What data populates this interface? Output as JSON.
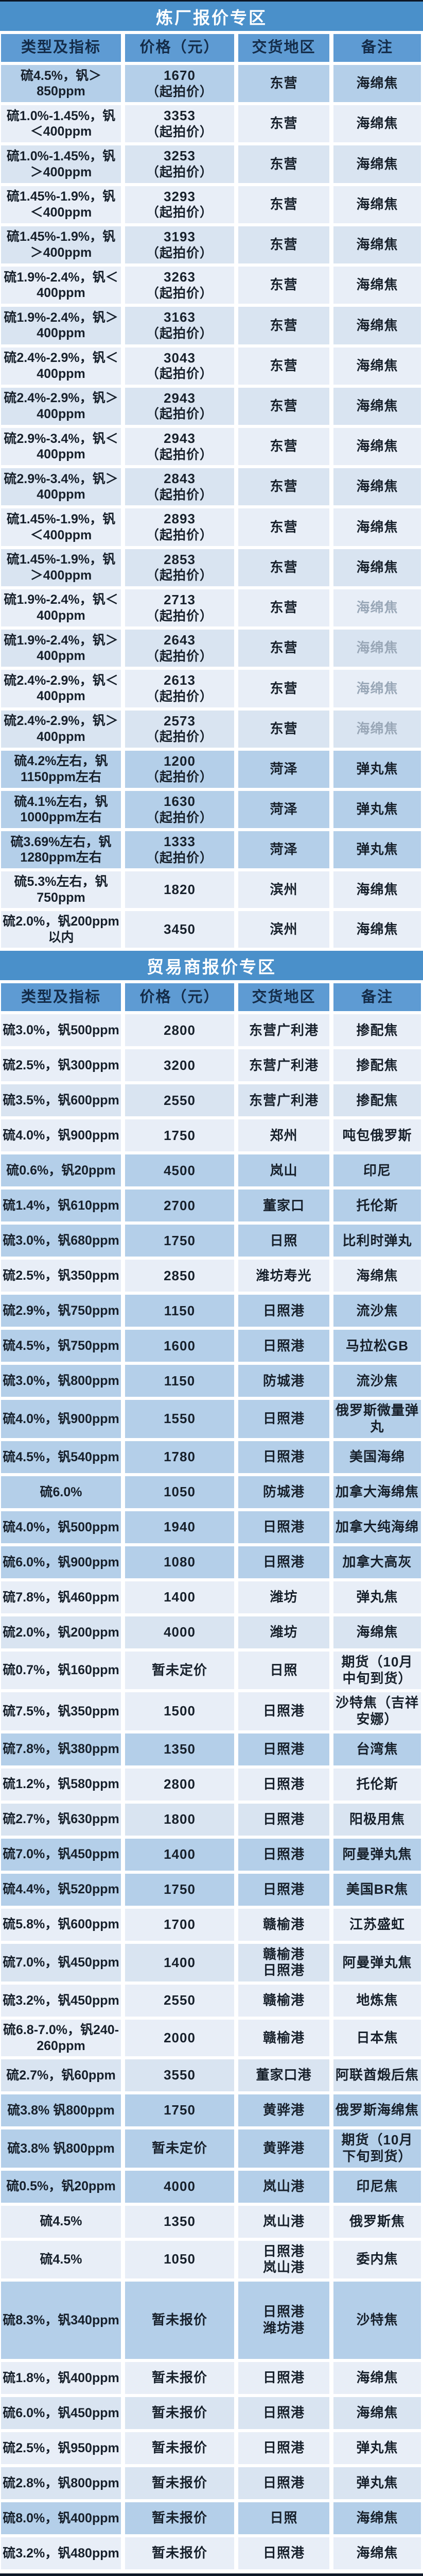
{
  "colors": {
    "section_band": "#4a90ca",
    "header_cell": "#5e9bd3",
    "header_text": "#142c49",
    "band_text": "#ffffff",
    "row_a": "#e8eef7",
    "row_b": "#d9e4f1",
    "row_m": "#b4cfe9",
    "cell_text": "#17202b",
    "muted_text": "#99a7b7",
    "frame": "#0d1726"
  },
  "columns": [
    "类型及指标",
    "价格（元）",
    "交货地区",
    "备注"
  ],
  "sections": [
    {
      "title": "炼厂报价专区",
      "rows": [
        {
          "spec": "硫4.5%，钒＞850ppm",
          "price": "1670",
          "price_note": "（起拍价）",
          "region": "东营",
          "note": "海绵焦",
          "shade": "m"
        },
        {
          "spec": "硫1.0%-1.45%，钒＜400ppm",
          "price": "3353",
          "price_note": "（起拍价）",
          "region": "东营",
          "note": "海绵焦",
          "shade": "a"
        },
        {
          "spec": "硫1.0%-1.45%，钒＞400ppm",
          "price": "3253",
          "price_note": "（起拍价）",
          "region": "东营",
          "note": "海绵焦",
          "shade": "b"
        },
        {
          "spec": "硫1.45%-1.9%，钒＜400ppm",
          "price": "3293",
          "price_note": "（起拍价）",
          "region": "东营",
          "note": "海绵焦",
          "shade": "a"
        },
        {
          "spec": "硫1.45%-1.9%，钒＞400ppm",
          "price": "3193",
          "price_note": "（起拍价）",
          "region": "东营",
          "note": "海绵焦",
          "shade": "b"
        },
        {
          "spec": "硫1.9%-2.4%，钒＜400ppm",
          "price": "3263",
          "price_note": "（起拍价）",
          "region": "东营",
          "note": "海绵焦",
          "shade": "a"
        },
        {
          "spec": "硫1.9%-2.4%，钒＞400ppm",
          "price": "3163",
          "price_note": "（起拍价）",
          "region": "东营",
          "note": "海绵焦",
          "shade": "b"
        },
        {
          "spec": "硫2.4%-2.9%，钒＜400ppm",
          "price": "3043",
          "price_note": "（起拍价）",
          "region": "东营",
          "note": "海绵焦",
          "shade": "a"
        },
        {
          "spec": "硫2.4%-2.9%，钒＞400ppm",
          "price": "2943",
          "price_note": "（起拍价）",
          "region": "东营",
          "note": "海绵焦",
          "shade": "b"
        },
        {
          "spec": "硫2.9%-3.4%，钒＜400ppm",
          "price": "2943",
          "price_note": "（起拍价）",
          "region": "东营",
          "note": "海绵焦",
          "shade": "a"
        },
        {
          "spec": "硫2.9%-3.4%，钒＞400ppm",
          "price": "2843",
          "price_note": "（起拍价）",
          "region": "东营",
          "note": "海绵焦",
          "shade": "b"
        },
        {
          "spec": "硫1.45%-1.9%，钒＜400ppm",
          "price": "2893",
          "price_note": "（起拍价）",
          "region": "东营",
          "note": "海绵焦",
          "shade": "a"
        },
        {
          "spec": "硫1.45%-1.9%，钒＞400ppm",
          "price": "2853",
          "price_note": "（起拍价）",
          "region": "东营",
          "note": "海绵焦",
          "shade": "b"
        },
        {
          "spec": "硫1.9%-2.4%，钒＜400ppm",
          "price": "2713",
          "price_note": "（起拍价）",
          "region": "东营",
          "note": "海绵焦",
          "shade": "a",
          "muted": true
        },
        {
          "spec": "硫1.9%-2.4%，钒＞400ppm",
          "price": "2643",
          "price_note": "（起拍价）",
          "region": "东营",
          "note": "海绵焦",
          "shade": "b",
          "muted": true
        },
        {
          "spec": "硫2.4%-2.9%，钒＜400ppm",
          "price": "2613",
          "price_note": "（起拍价）",
          "region": "东营",
          "note": "海绵焦",
          "shade": "a",
          "muted": true
        },
        {
          "spec": "硫2.4%-2.9%，钒＞400ppm",
          "price": "2573",
          "price_note": "（起拍价）",
          "region": "东营",
          "note": "海绵焦",
          "shade": "b",
          "muted": true
        },
        {
          "spec": "硫4.2%左右，钒1150ppm左右",
          "price": "1200",
          "price_note": "（起拍价）",
          "region": "菏泽",
          "note": "弹丸焦",
          "shade": "m"
        },
        {
          "spec": "硫4.1%左右，钒1000ppm左右",
          "price": "1630",
          "price_note": "（起拍价）",
          "region": "菏泽",
          "note": "弹丸焦",
          "shade": "m"
        },
        {
          "spec": "硫3.69%左右，钒1280ppm左右",
          "price": "1333",
          "price_note": "（起拍价）",
          "region": "菏泽",
          "note": "弹丸焦",
          "shade": "m"
        },
        {
          "spec": "硫5.3%左右，钒750ppm",
          "price": "1820",
          "price_note": "",
          "region": "滨州",
          "note": "海绵焦",
          "shade": "a"
        },
        {
          "spec": "硫2.0%，钒200ppm以内",
          "price": "3450",
          "price_note": "",
          "region": "滨州",
          "note": "海绵焦",
          "shade": "a"
        }
      ]
    },
    {
      "title": "贸易商报价专区",
      "rows": [
        {
          "spec": "硫3.0%，钒500ppm",
          "price": "2800",
          "price_note": "",
          "region": "东营广利港",
          "note": "掺配焦",
          "shade": "a"
        },
        {
          "spec": "硫2.5%，钒300ppm",
          "price": "3200",
          "price_note": "",
          "region": "东营广利港",
          "note": "掺配焦",
          "shade": "a"
        },
        {
          "spec": "硫3.5%，钒600ppm",
          "price": "2550",
          "price_note": "",
          "region": "东营广利港",
          "note": "掺配焦",
          "shade": "b"
        },
        {
          "spec": "硫4.0%，钒900ppm",
          "price": "1750",
          "price_note": "",
          "region": "郑州",
          "note": "吨包俄罗斯",
          "shade": "a"
        },
        {
          "spec": "硫0.6%，钒20ppm",
          "price": "4500",
          "price_note": "",
          "region": "岚山",
          "note": "印尼",
          "shade": "m"
        },
        {
          "spec": "硫1.4%，钒610ppm",
          "price": "2700",
          "price_note": "",
          "region": "董家口",
          "note": "托伦斯",
          "shade": "m"
        },
        {
          "spec": "硫3.0%，钒680ppm",
          "price": "1750",
          "price_note": "",
          "region": "日照",
          "note": "比利时弹丸",
          "shade": "m"
        },
        {
          "spec": "硫2.5%，钒350ppm",
          "price": "2850",
          "price_note": "",
          "region": "潍坊寿光",
          "note": "海绵焦",
          "shade": "a"
        },
        {
          "spec": "硫2.9%，钒750ppm",
          "price": "1150",
          "price_note": "",
          "region": "日照港",
          "note": "流沙焦",
          "shade": "m"
        },
        {
          "spec": "硫4.5%，钒750ppm",
          "price": "1600",
          "price_note": "",
          "region": "日照港",
          "note": "马拉松GB",
          "shade": "m"
        },
        {
          "spec": "硫3.0%，钒800ppm",
          "price": "1150",
          "price_note": "",
          "region": "防城港",
          "note": "流沙焦",
          "shade": "m"
        },
        {
          "spec": "硫4.0%，钒900ppm",
          "price": "1550",
          "price_note": "",
          "region": "日照港",
          "note": "俄罗斯微量弹丸",
          "shade": "m"
        },
        {
          "spec": "硫4.5%，钒540ppm",
          "price": "1780",
          "price_note": "",
          "region": "日照港",
          "note": "美国海绵",
          "shade": "m"
        },
        {
          "spec": "硫6.0%",
          "price": "1050",
          "price_note": "",
          "region": "防城港",
          "note": "加拿大海绵焦",
          "shade": "m"
        },
        {
          "spec": "硫4.0%，钒500ppm",
          "price": "1940",
          "price_note": "",
          "region": "日照港",
          "note": "加拿大纯海绵",
          "shade": "m"
        },
        {
          "spec": "硫6.0%，钒900ppm",
          "price": "1080",
          "price_note": "",
          "region": "日照港",
          "note": "加拿大高灰",
          "shade": "m"
        },
        {
          "spec": "硫7.8%，钒460ppm",
          "price": "1400",
          "price_note": "",
          "region": "潍坊",
          "note": "弹丸焦",
          "shade": "a"
        },
        {
          "spec": "硫2.0%，钒200ppm",
          "price": "4000",
          "price_note": "",
          "region": "潍坊",
          "note": "海绵焦",
          "shade": "b"
        },
        {
          "spec": "硫0.7%，钒160ppm",
          "price": "暂未定价",
          "price_note": "",
          "region": "日照",
          "note": "期货（10月中旬到货）",
          "shade": "a"
        },
        {
          "spec": "硫7.5%，钒350ppm",
          "price": "1500",
          "price_note": "",
          "region": "日照港",
          "note": "沙特焦（吉祥安娜）",
          "shade": "a"
        },
        {
          "spec": "硫7.8%，钒380ppm",
          "price": "1350",
          "price_note": "",
          "region": "日照港",
          "note": "台湾焦",
          "shade": "m"
        },
        {
          "spec": "硫1.2%，钒580ppm",
          "price": "2800",
          "price_note": "",
          "region": "日照港",
          "note": "托伦斯",
          "shade": "a"
        },
        {
          "spec": "硫2.7%，钒630ppm",
          "price": "1800",
          "price_note": "",
          "region": "日照港",
          "note": "阳极用焦",
          "shade": "b"
        },
        {
          "spec": "硫7.0%，钒450ppm",
          "price": "1400",
          "price_note": "",
          "region": "日照港",
          "note": "阿曼弹丸焦",
          "shade": "m"
        },
        {
          "spec": "硫4.4%，钒520ppm",
          "price": "1750",
          "price_note": "",
          "region": "日照港",
          "note": "美国BR焦",
          "shade": "m"
        },
        {
          "spec": "硫5.8%，钒600ppm",
          "price": "1700",
          "price_note": "",
          "region": "赣榆港",
          "note": "江苏盛虹",
          "shade": "a"
        },
        {
          "spec": "硫7.0%，钒450ppm",
          "price": "1400",
          "price_note": "",
          "region": "赣榆港\n日照港",
          "note": "阿曼弹丸焦",
          "shade": "b"
        },
        {
          "spec": "硫3.2%，钒450ppm",
          "price": "2550",
          "price_note": "",
          "region": "赣榆港",
          "note": "地炼焦",
          "shade": "a"
        },
        {
          "spec": "硫6.8-7.0%，钒240-260ppm",
          "price": "2000",
          "price_note": "",
          "region": "赣榆港",
          "note": "日本焦",
          "shade": "a"
        },
        {
          "spec": "硫2.7%，钒60ppm",
          "price": "3550",
          "price_note": "",
          "region": "董家口港",
          "note": "阿联酋煅后焦",
          "shade": "b"
        },
        {
          "spec": "硫3.8% 钒800ppm",
          "price": "1750",
          "price_note": "",
          "region": "黄骅港",
          "note": "俄罗斯海绵焦",
          "shade": "m"
        },
        {
          "spec": "硫3.8% 钒800ppm",
          "price": "暂未定价",
          "price_note": "",
          "region": "黄骅港",
          "note": "期货（10月下旬到货）",
          "shade": "m"
        },
        {
          "spec": "硫0.5%，钒20ppm",
          "price": "4000",
          "price_note": "",
          "region": "岚山港",
          "note": "印尼焦",
          "shade": "m"
        },
        {
          "spec": "硫4.5%",
          "price": "1350",
          "price_note": "",
          "region": "岚山港",
          "note": "俄罗斯焦",
          "shade": "a"
        },
        {
          "spec": "硫4.5%",
          "price": "1050",
          "price_note": "",
          "region": "日照港\n岚山港",
          "note": "委内焦",
          "shade": "a"
        },
        {
          "spec": "硫8.3%，钒340ppm",
          "price": "暂未报价",
          "price_note": "",
          "region": "日照港\n潍坊港",
          "note": "沙特焦",
          "shade": "m",
          "tall": true
        },
        {
          "spec": "硫1.8%，钒400ppm",
          "price": "暂未报价",
          "price_note": "",
          "region": "日照港",
          "note": "海绵焦",
          "shade": "a"
        },
        {
          "spec": "硫6.0%，钒450ppm",
          "price": "暂未报价",
          "price_note": "",
          "region": "日照港",
          "note": "海绵焦",
          "shade": "b"
        },
        {
          "spec": "硫2.5%，钒950ppm",
          "price": "暂未报价",
          "price_note": "",
          "region": "日照港",
          "note": "弹丸焦",
          "shade": "a"
        },
        {
          "spec": "硫2.8%，钒800ppm",
          "price": "暂未报价",
          "price_note": "",
          "region": "日照港",
          "note": "弹丸焦",
          "shade": "b"
        },
        {
          "spec": "硫8.0%，钒400ppm",
          "price": "暂未报价",
          "price_note": "",
          "region": "日照",
          "note": "海绵焦",
          "shade": "m"
        },
        {
          "spec": "硫3.2%，钒480ppm",
          "price": "暂未报价",
          "price_note": "",
          "region": "日照港",
          "note": "海绵焦",
          "shade": "a"
        }
      ]
    }
  ]
}
